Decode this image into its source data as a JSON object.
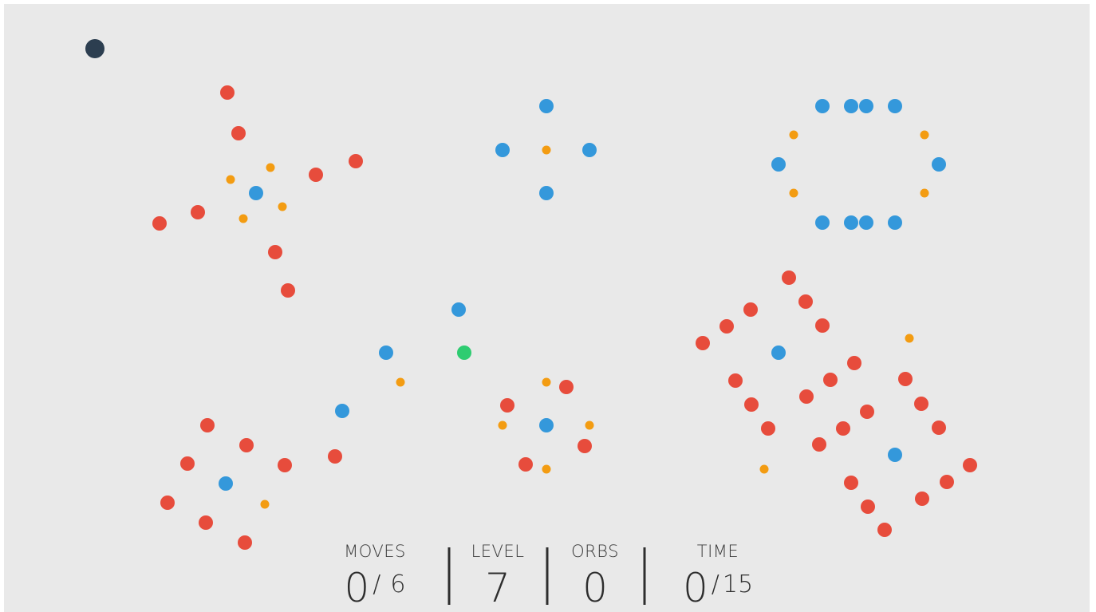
{
  "hud": {
    "moves": {
      "label": "MOVES",
      "value": 0,
      "separator": "/",
      "max": 6
    },
    "level": {
      "label": "LEVEL",
      "value": 7
    },
    "orbs": {
      "label": "ORBS",
      "value": 0
    },
    "time": {
      "label": "TIME",
      "value": 0,
      "separator": "/",
      "max": 15
    }
  }
}
